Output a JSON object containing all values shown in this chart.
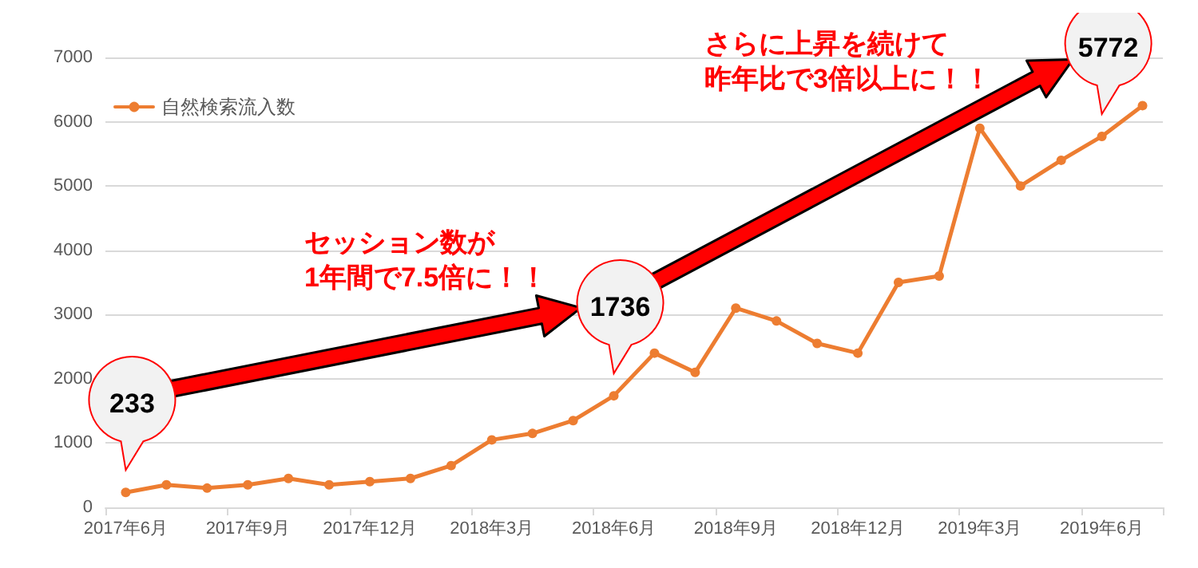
{
  "chart_data": {
    "type": "line",
    "categories": [
      "2017年6月",
      null,
      null,
      "2017年9月",
      null,
      null,
      "2017年12月",
      null,
      null,
      "2018年3月",
      null,
      null,
      "2018年6月",
      null,
      null,
      "2018年9月",
      null,
      null,
      "2018年12月",
      null,
      null,
      "2019年3月",
      null,
      null,
      "2019年6月",
      null
    ],
    "series": [
      {
        "name": "自然検索流入数",
        "color": "#ed7d31",
        "values": [
          233,
          350,
          300,
          350,
          450,
          350,
          400,
          450,
          650,
          1050,
          1150,
          1350,
          1736,
          2400,
          2100,
          3100,
          2900,
          2550,
          2400,
          3500,
          3600,
          5900,
          5000,
          5400,
          5772,
          6250
        ]
      }
    ],
    "ylim": [
      0,
      7000
    ],
    "yticks": [
      0,
      1000,
      2000,
      3000,
      4000,
      5000,
      6000,
      7000
    ],
    "grid": "y",
    "legend": "top left",
    "marker": "circle",
    "line_style": "solid",
    "annotations": [
      {
        "text": "233",
        "x": "2017年6月",
        "y": 233
      },
      {
        "text": "1736",
        "x": "2018年6月",
        "y": 1736
      },
      {
        "text": "5772",
        "x": "2019年6月",
        "y": 5772
      },
      "セッション数が",
      "1年間で7.5倍に！！",
      "さらに上昇を続けて",
      "昨年比で3倍以上に！！"
    ]
  }
}
